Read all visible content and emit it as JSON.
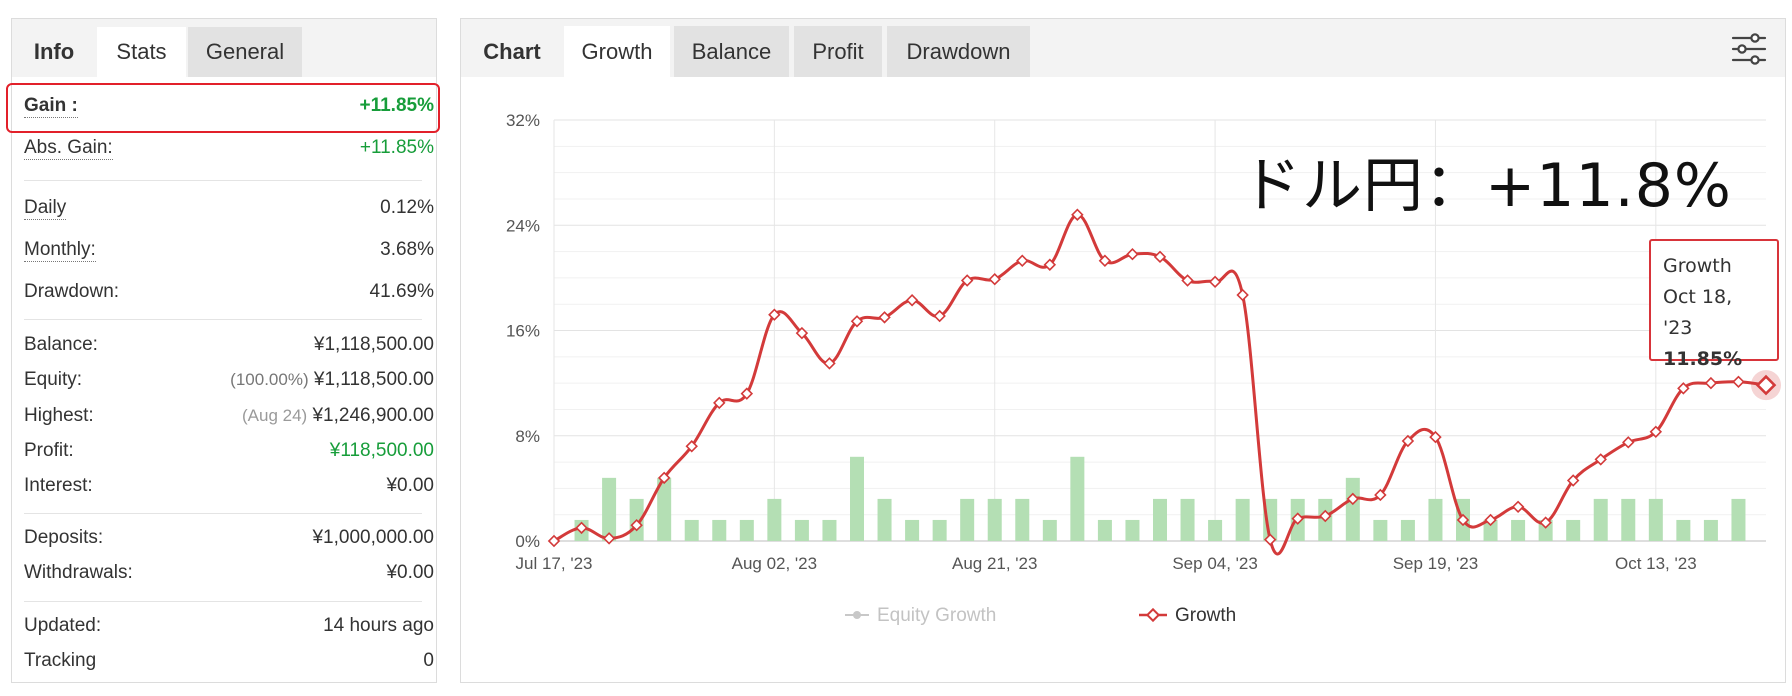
{
  "left_tabs": [
    {
      "label": "Info"
    },
    {
      "label": "Stats"
    },
    {
      "label": "General"
    }
  ],
  "stats": {
    "gain": {
      "label": "Gain :",
      "value": "+11.85%"
    },
    "abs_gain": {
      "label": "Abs. Gain:",
      "value": "+11.85%"
    },
    "daily": {
      "label": "Daily",
      "value": "0.12%"
    },
    "monthly": {
      "label": "Monthly:",
      "value": "3.68%"
    },
    "drawdown": {
      "label": "Drawdown:",
      "value": "41.69%"
    },
    "balance": {
      "label": "Balance:",
      "value": "¥1,118,500.00"
    },
    "equity": {
      "label": "Equity:",
      "prefix": "(100.00%)",
      "value": "¥1,118,500.00"
    },
    "highest": {
      "label": "Highest:",
      "prefix": "(Aug 24)",
      "value": "¥1,246,900.00"
    },
    "profit": {
      "label": "Profit:",
      "value": "¥118,500.00"
    },
    "interest": {
      "label": "Interest:",
      "value": "¥0.00"
    },
    "deposits": {
      "label": "Deposits:",
      "value": "¥1,000,000.00"
    },
    "withdrawals": {
      "label": "Withdrawals:",
      "value": "¥0.00"
    },
    "updated": {
      "label": "Updated:",
      "value": "14 hours ago"
    },
    "tracking": {
      "label": "Tracking",
      "value": "0"
    }
  },
  "chart_tabs": [
    {
      "label": "Chart"
    },
    {
      "label": "Growth"
    },
    {
      "label": "Balance"
    },
    {
      "label": "Profit"
    },
    {
      "label": "Drawdown"
    }
  ],
  "annotation": "ドル円：+11.8%",
  "tooltip": {
    "series": "Growth",
    "date": "Oct 18, '23",
    "value": "11.85%"
  },
  "colors": {
    "growth_line": "#d33a3a",
    "bars": "#b4dfb4",
    "equity_legend": "#c8c8c8",
    "gain_green": "#179d3a"
  },
  "chart_data": {
    "type": "line",
    "ylim": [
      0,
      32
    ],
    "y_ticks": [
      "0%",
      "8%",
      "16%",
      "24%",
      "32%"
    ],
    "x_ticks": [
      "Jul 17, '23",
      "Aug 02, '23",
      "Aug 21, '23",
      "Sep 04, '23",
      "Sep 19, '23",
      "Oct 13, '23"
    ],
    "x_tick_index": [
      0,
      8,
      16,
      24,
      32,
      40
    ],
    "legend": [
      "Equity Growth",
      "Growth"
    ],
    "series": [
      {
        "name": "Growth",
        "values": [
          0.0,
          1.0,
          0.2,
          1.2,
          4.8,
          7.2,
          10.5,
          11.2,
          17.2,
          15.8,
          13.5,
          16.7,
          17.0,
          18.3,
          17.1,
          19.8,
          19.9,
          21.3,
          21.0,
          24.8,
          21.3,
          21.8,
          21.6,
          19.8,
          19.7,
          18.7,
          0.1,
          1.7,
          1.9,
          3.2,
          3.5,
          7.6,
          7.9,
          1.6,
          1.6,
          2.6,
          1.4,
          4.6,
          6.2,
          7.5,
          8.3,
          11.6,
          12.0,
          12.1,
          11.85
        ]
      },
      {
        "name": "Equity Growth",
        "type": "bar",
        "values": [
          0,
          1.6,
          4.8,
          3.2,
          4.8,
          1.6,
          1.6,
          1.6,
          3.2,
          1.6,
          1.6,
          6.4,
          3.2,
          1.6,
          1.6,
          3.2,
          3.2,
          3.2,
          1.6,
          6.4,
          1.6,
          1.6,
          3.2,
          3.2,
          1.6,
          3.2,
          3.2,
          3.2,
          3.2,
          4.8,
          1.6,
          1.6,
          3.2,
          3.2,
          1.6,
          1.6,
          1.6,
          1.6,
          3.2,
          3.2,
          3.2,
          1.6,
          1.6,
          3.2,
          0
        ]
      }
    ]
  }
}
